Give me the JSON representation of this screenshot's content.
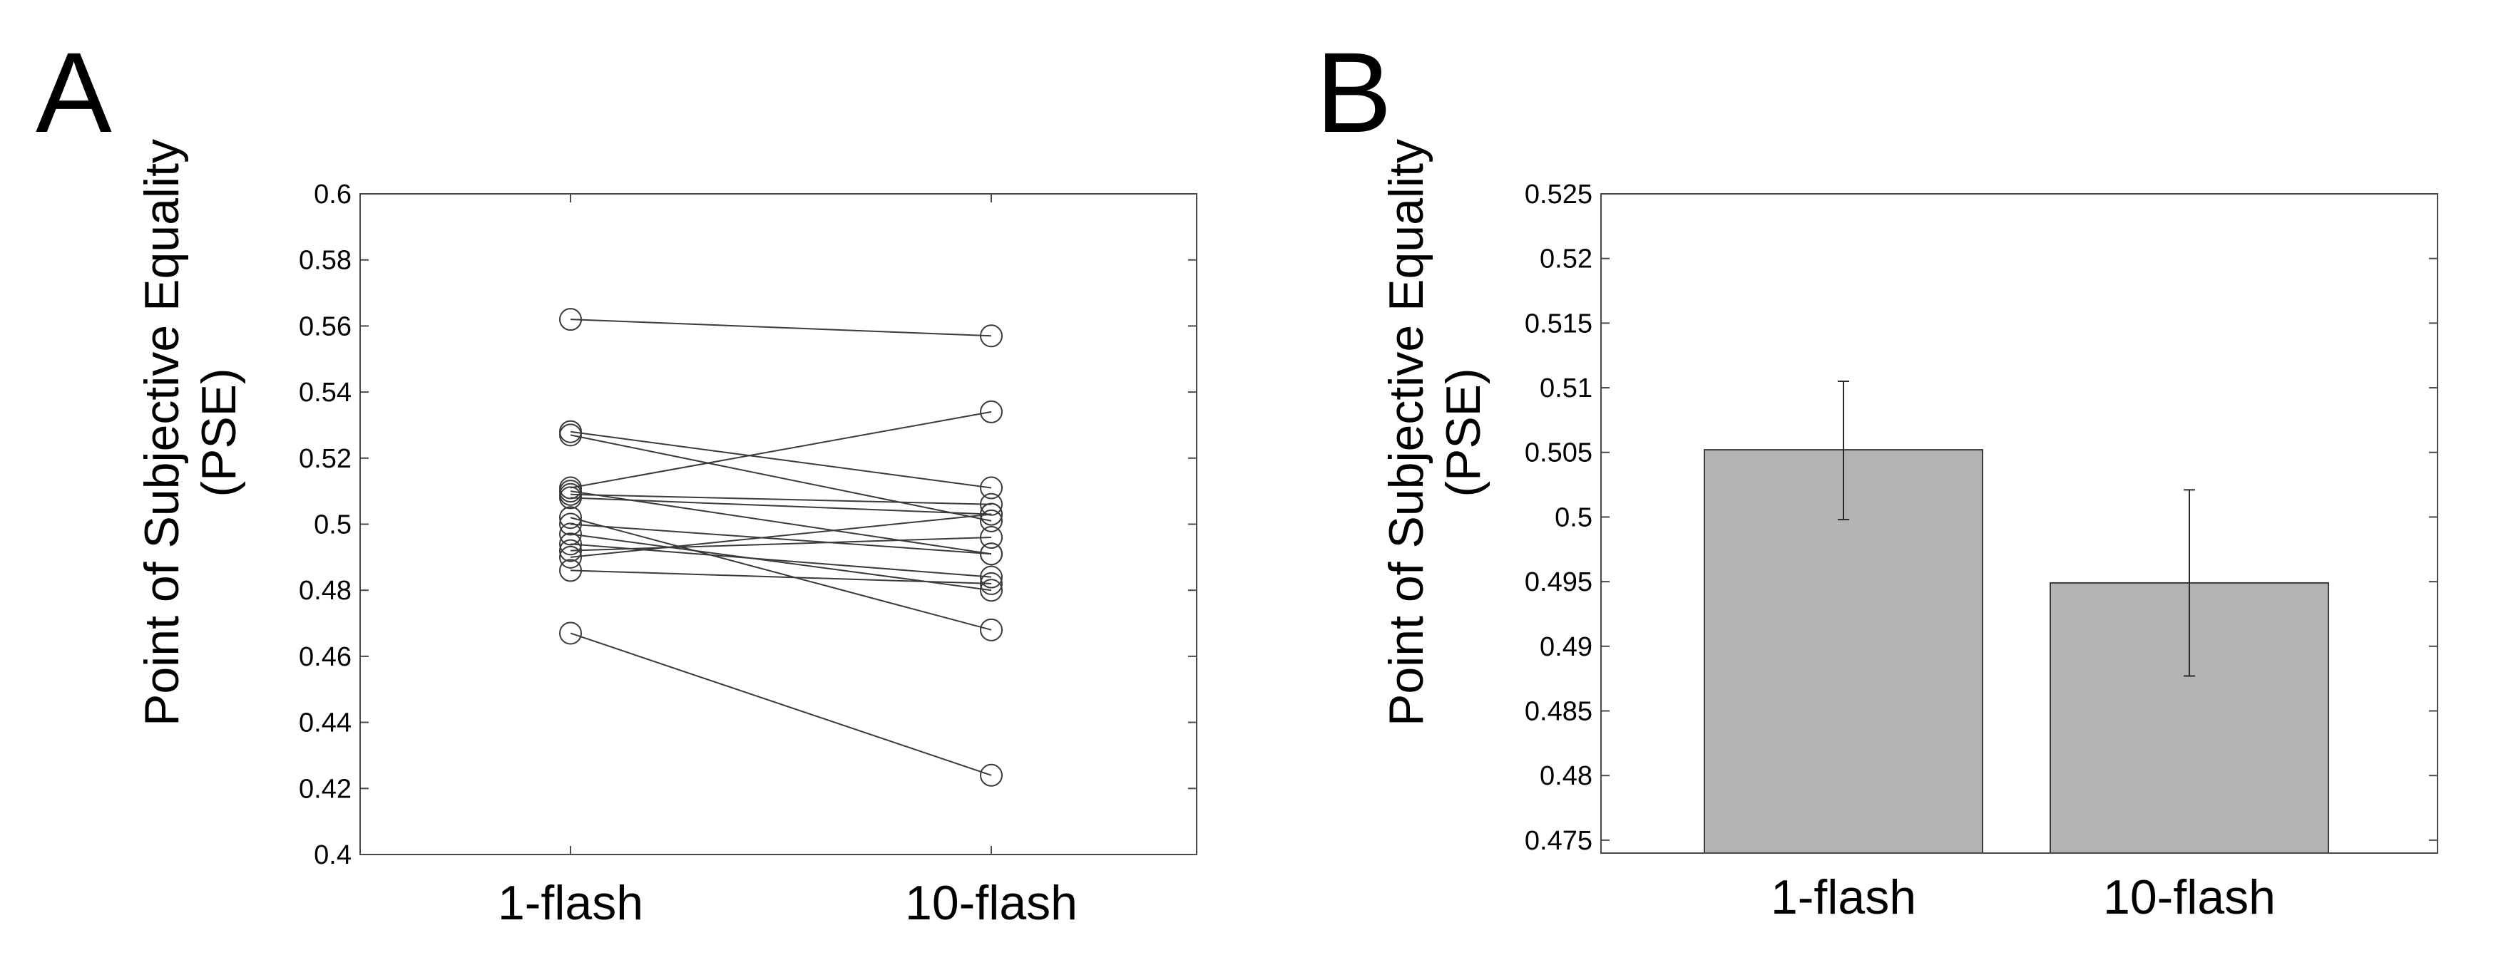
{
  "chart_data": [
    {
      "type": "line",
      "panel_label": "A",
      "title": "",
      "xlabel": "",
      "ylabel_lines": [
        "Point of Subjective Equality",
        "(PSE)"
      ],
      "categories": [
        "1-flash",
        "10-flash"
      ],
      "ylim": [
        0.4,
        0.6
      ],
      "yticks": [
        0.4,
        0.42,
        0.44,
        0.46,
        0.48,
        0.5,
        0.52,
        0.54,
        0.56,
        0.58,
        0.6
      ],
      "ytick_labels": [
        "0.4",
        "0.42",
        "0.44",
        "0.46",
        "0.48",
        "0.5",
        "0.52",
        "0.54",
        "0.56",
        "0.58",
        "0.6"
      ],
      "grid": false,
      "marker": "open-circle",
      "color": "#3a3a3a",
      "subjects": [
        {
          "values": [
            0.562,
            0.557
          ]
        },
        {
          "values": [
            0.528,
            0.511
          ]
        },
        {
          "values": [
            0.527,
            0.501
          ]
        },
        {
          "values": [
            0.511,
            0.534
          ]
        },
        {
          "values": [
            0.51,
            0.491
          ]
        },
        {
          "values": [
            0.509,
            0.506
          ]
        },
        {
          "values": [
            0.508,
            0.503
          ]
        },
        {
          "values": [
            0.502,
            0.468
          ]
        },
        {
          "values": [
            0.5,
            0.491
          ]
        },
        {
          "values": [
            0.497,
            0.48
          ]
        },
        {
          "values": [
            0.494,
            0.484
          ]
        },
        {
          "values": [
            0.492,
            0.496
          ]
        },
        {
          "values": [
            0.49,
            0.503
          ]
        },
        {
          "values": [
            0.486,
            0.482
          ]
        },
        {
          "values": [
            0.467,
            0.424
          ]
        }
      ]
    },
    {
      "type": "bar",
      "panel_label": "B",
      "title": "",
      "xlabel": "",
      "ylabel_lines": [
        "Point of Subjective Equality",
        "(PSE)"
      ],
      "categories": [
        "1-flash",
        "10-flash"
      ],
      "values": [
        0.5052,
        0.4949
      ],
      "error_low": [
        0.4998,
        0.4877
      ],
      "error_high": [
        0.5105,
        0.5021
      ],
      "ylim": [
        0.474,
        0.525
      ],
      "yticks": [
        0.475,
        0.48,
        0.485,
        0.49,
        0.495,
        0.5,
        0.505,
        0.51,
        0.515,
        0.52,
        0.525
      ],
      "ytick_labels": [
        "0.475",
        "0.48",
        "0.485",
        "0.49",
        "0.495",
        "0.5",
        "0.505",
        "0.51",
        "0.515",
        "0.52",
        "0.525"
      ],
      "grid": false,
      "bar_color": "#b3b3b3"
    }
  ]
}
